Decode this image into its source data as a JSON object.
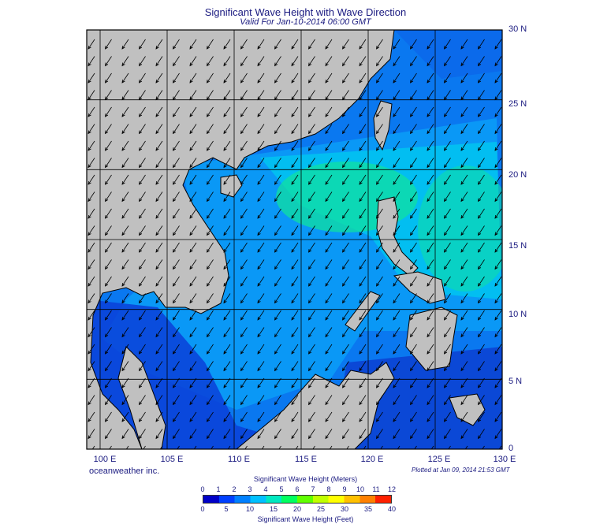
{
  "title": "Significant Wave Height with Wave Direction",
  "subtitle": "Valid For Jan-10-2014 06:00 GMT",
  "map": {
    "lon_range": [
      99,
      130
    ],
    "lat_range": [
      0,
      30
    ],
    "lon_labels": [
      "100 E",
      "105 E",
      "110 E",
      "115 E",
      "120 E",
      "125 E",
      "130 E"
    ],
    "lat_labels": [
      "30 N",
      "25 N",
      "20 N",
      "15 N",
      "10 N",
      "5 N",
      "0"
    ],
    "land_color": "#c0c0c0",
    "wave_direction": "from northeast"
  },
  "credit": "oceanweather inc.",
  "plotted_at": "Plotted at Jan 09, 2014 21:53 GMT",
  "colorbar": {
    "meters_title": "Significant Wave Height (Meters)",
    "feet_title": "Significant Wave Height (Feet)",
    "meters_ticks": [
      "0",
      "1",
      "2",
      "3",
      "4",
      "5",
      "6",
      "7",
      "8",
      "9",
      "10",
      "11",
      "12"
    ],
    "feet_ticks": [
      "0",
      "5",
      "10",
      "15",
      "20",
      "25",
      "30",
      "35",
      "40"
    ],
    "colors": [
      "#0000c8",
      "#0040ff",
      "#0080ff",
      "#00c0ff",
      "#00e8c0",
      "#00ff60",
      "#60ff00",
      "#c0ff00",
      "#ffff00",
      "#ffc000",
      "#ff8000",
      "#ff2000"
    ]
  }
}
